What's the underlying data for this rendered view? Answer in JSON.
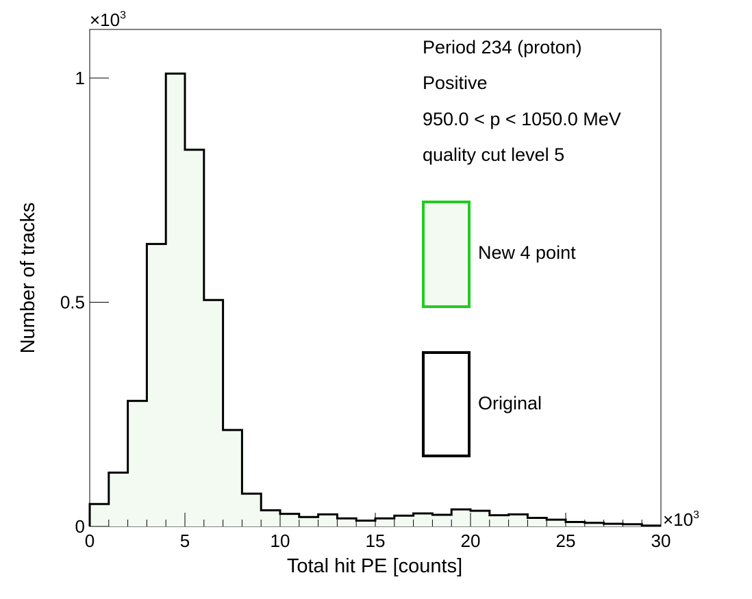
{
  "chart_data": {
    "type": "bar",
    "style": "histogram-step",
    "xlabel": "Total hit PE [counts]",
    "ylabel": "Number of tracks",
    "x_multiplier": "×10",
    "y_multiplier": "×10",
    "exponent": "3",
    "xlim": [
      0,
      30
    ],
    "ylim": [
      0,
      1.0
    ],
    "x_ticks": [
      0,
      5,
      10,
      15,
      20,
      25,
      30
    ],
    "y_ticks": [
      0,
      0.5,
      1
    ],
    "x_tick_labels": [
      "0",
      "5",
      "10",
      "15",
      "20",
      "25",
      "30"
    ],
    "y_tick_labels": [
      "0",
      "0.5",
      "1"
    ],
    "bin_edges": [
      0,
      1,
      2,
      3,
      4,
      5,
      6,
      7,
      8,
      9,
      10,
      11,
      12,
      13,
      14,
      15,
      16,
      17,
      18,
      19,
      20,
      21,
      22,
      23,
      24,
      25,
      26,
      27,
      28,
      29,
      30
    ],
    "series": [
      {
        "name": "New 4 point",
        "style": "filled",
        "line_color": "#000000",
        "fill_color": "#f2faf2",
        "values": [
          0.05,
          0.12,
          0.28,
          0.63,
          1.01,
          0.84,
          0.505,
          0.215,
          0.073,
          0.036,
          0.028,
          0.021,
          0.027,
          0.018,
          0.013,
          0.018,
          0.024,
          0.029,
          0.026,
          0.038,
          0.035,
          0.025,
          0.027,
          0.019,
          0.015,
          0.01,
          0.008,
          0.006,
          0.005,
          0.002
        ]
      }
    ],
    "annotations": [
      "Period 234 (proton)",
      "Positive",
      "950.0 < p < 1050.0 MeV",
      "quality cut level 5"
    ],
    "legend": {
      "placement": "right-middle",
      "entries": [
        {
          "label": "New 4 point",
          "border_color": "#22cc22",
          "fill_color": "#f2faf2"
        },
        {
          "label": "Original",
          "border_color": "#000000",
          "fill_color": "#ffffff"
        }
      ]
    },
    "grid": false
  }
}
